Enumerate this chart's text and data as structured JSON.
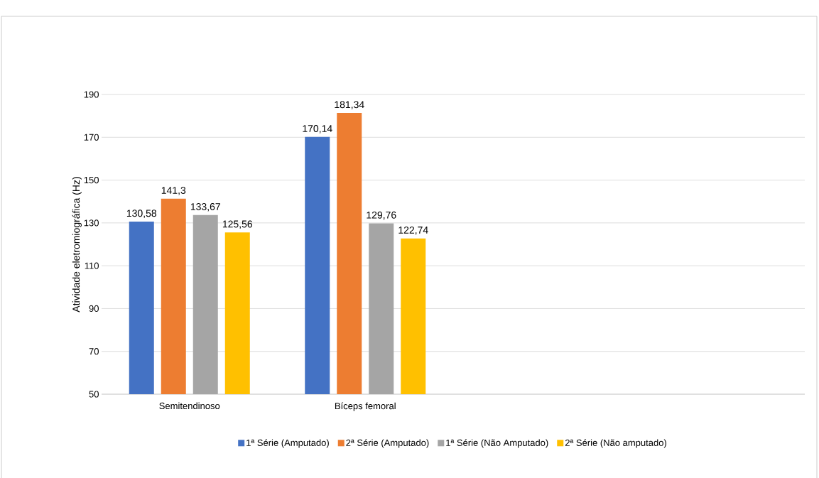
{
  "chart_data": {
    "type": "bar",
    "ylabel": "Atividade eletromiográfica (Hz)",
    "categories": [
      "Semitendinoso",
      "Bíceps femoral",
      null,
      null
    ],
    "series": [
      {
        "name": "1ª Série (Amputado)",
        "color": "#4472c4",
        "values": [
          130.58,
          170.14,
          null,
          null
        ],
        "value_labels": [
          "130,58",
          "170,14",
          null,
          null
        ]
      },
      {
        "name": "2ª Série (Amputado)",
        "color": "#ed7d31",
        "values": [
          141.3,
          181.34,
          null,
          null
        ],
        "value_labels": [
          "141,3",
          "181,34",
          null,
          null
        ]
      },
      {
        "name": "1ª Série (Não Amputado)",
        "color": "#a5a5a5",
        "values": [
          133.67,
          129.76,
          null,
          null
        ],
        "value_labels": [
          "133,67",
          "129,76",
          null,
          null
        ]
      },
      {
        "name": "2ª Série (Não amputado)",
        "color": "#ffc000",
        "values": [
          125.56,
          122.74,
          null,
          null
        ],
        "value_labels": [
          "125,56",
          "122,74",
          null,
          null
        ]
      }
    ],
    "ylim": [
      50,
      190
    ],
    "yticks": [
      50,
      70,
      90,
      110,
      130,
      150,
      170,
      190
    ],
    "grid": "y",
    "legend": "bottom"
  }
}
